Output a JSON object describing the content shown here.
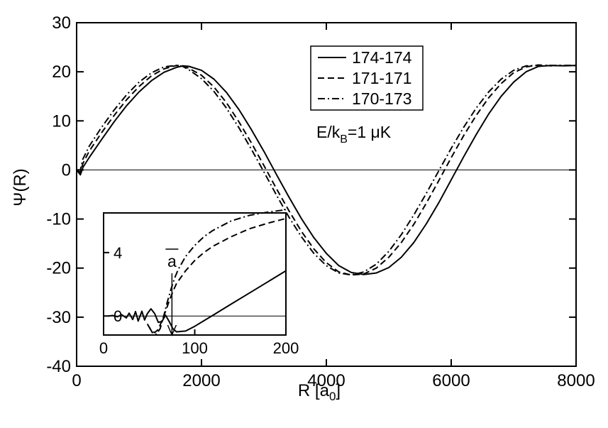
{
  "chart_data": [
    {
      "type": "line",
      "xlabel": "R [a0]",
      "xlabel_parts": {
        "main": "R [a",
        "sub": "0",
        "close": "]"
      },
      "ylabel": "Ψ(R)",
      "xlim": [
        0,
        8000
      ],
      "ylim": [
        -40,
        30
      ],
      "xticks": [
        0,
        2000,
        4000,
        6000,
        8000
      ],
      "yticks": [
        -40,
        -30,
        -20,
        -10,
        0,
        10,
        20,
        30
      ],
      "reference_line_y": 0,
      "legend_position": "top-right",
      "annotation": "E/kB=1 μK",
      "annotation_parts": {
        "main": "E/k",
        "sub": "B",
        "rest": "=1 μK"
      },
      "series": [
        {
          "name": "174-174",
          "style": "solid",
          "x": [
            0,
            60,
            100,
            200,
            400,
            600,
            800,
            1000,
            1200,
            1400,
            1600,
            1700,
            1800,
            2000,
            2200,
            2400,
            2600,
            2800,
            3000,
            3200,
            3400,
            3600,
            3800,
            4000,
            4200,
            4400,
            4600,
            4800,
            5000,
            5200,
            5400,
            5600,
            5800,
            6000,
            6200,
            6400,
            6600,
            6800,
            7000,
            7200,
            7400,
            7600,
            7800,
            8000
          ],
          "y": [
            0,
            -1,
            0.5,
            2.5,
            6.2,
            9.8,
            13.1,
            15.9,
            18.2,
            19.9,
            20.9,
            21.2,
            21.1,
            20.3,
            18.5,
            15.8,
            12.3,
            8.2,
            3.8,
            -0.9,
            -5.5,
            -9.9,
            -13.8,
            -17.0,
            -19.5,
            -20.9,
            -21.3,
            -21.0,
            -19.9,
            -17.8,
            -14.8,
            -11.0,
            -6.7,
            -2.0,
            2.7,
            7.2,
            11.4,
            15.0,
            17.9,
            20.0,
            21.1,
            21.3,
            21.2,
            21.3
          ]
        },
        {
          "name": "171-171",
          "style": "dashed",
          "x": [
            0,
            60,
            100,
            200,
            400,
            600,
            800,
            1000,
            1200,
            1400,
            1600,
            1700,
            1800,
            2000,
            2200,
            2400,
            2600,
            2800,
            3000,
            3200,
            3400,
            3600,
            3800,
            4000,
            4200,
            4400,
            4600,
            4800,
            5000,
            5200,
            5400,
            5600,
            5800,
            6000,
            6200,
            6400,
            6600,
            6800,
            7000,
            7200,
            7400,
            7600,
            7800,
            8000
          ],
          "y": [
            0,
            -0.5,
            1.3,
            3.8,
            7.6,
            11.1,
            14.3,
            17.0,
            19.2,
            20.6,
            21.3,
            21.2,
            20.7,
            19.3,
            16.9,
            13.7,
            9.8,
            5.5,
            0.9,
            -3.8,
            -8.3,
            -12.5,
            -16.1,
            -18.9,
            -20.8,
            -21.4,
            -21.2,
            -20.0,
            -17.8,
            -14.8,
            -11.1,
            -6.8,
            -2.2,
            2.5,
            7.0,
            11.1,
            14.7,
            17.6,
            19.8,
            21.0,
            21.4,
            21.2,
            21.3,
            21.3
          ]
        },
        {
          "name": "170-173",
          "style": "dashdot",
          "x": [
            0,
            60,
            100,
            200,
            400,
            600,
            800,
            1000,
            1200,
            1400,
            1600,
            1700,
            1800,
            2000,
            2200,
            2400,
            2600,
            2800,
            3000,
            3200,
            3400,
            3600,
            3800,
            4000,
            4200,
            4400,
            4600,
            4800,
            5000,
            5200,
            5400,
            5600,
            5800,
            6000,
            6200,
            6400,
            6600,
            6800,
            7000,
            7200,
            7400,
            7600,
            7800,
            8000
          ],
          "y": [
            0,
            0,
            2.2,
            4.8,
            8.7,
            12.2,
            15.3,
            17.9,
            19.8,
            21.0,
            21.3,
            21.1,
            20.4,
            18.6,
            16.0,
            12.6,
            8.6,
            4.2,
            -0.4,
            -5.1,
            -9.6,
            -13.6,
            -17.0,
            -19.5,
            -21.0,
            -21.4,
            -20.8,
            -19.2,
            -16.6,
            -13.2,
            -9.2,
            -4.8,
            -0.2,
            4.4,
            8.7,
            12.6,
            15.9,
            18.5,
            20.3,
            21.2,
            21.3,
            21.3,
            21.3,
            21.3
          ]
        }
      ]
    },
    {
      "type": "line",
      "role": "inset",
      "xlim": [
        0,
        200
      ],
      "ylim": [
        -1.2,
        6.5
      ],
      "xticks": [
        0,
        100,
        200
      ],
      "yticks": [
        0,
        4
      ],
      "reference_line_y": 0,
      "marker_label": "a",
      "marker_x": 75,
      "series": [
        {
          "name": "174-174",
          "style": "solid",
          "x": [
            5,
            10,
            15,
            20,
            25,
            28,
            32,
            35,
            38,
            42,
            45,
            48,
            52,
            56,
            60,
            64,
            68,
            72,
            76,
            80,
            90,
            100,
            110,
            120,
            140,
            160,
            180,
            200
          ],
          "y": [
            0,
            0.03,
            -0.05,
            0.08,
            -0.12,
            0.18,
            -0.22,
            0.28,
            -0.32,
            0.3,
            -0.25,
            0.15,
            0.45,
            0.15,
            -0.4,
            -0.35,
            0.05,
            -0.35,
            -0.8,
            -1.0,
            -0.95,
            -0.65,
            -0.3,
            0.05,
            0.75,
            1.45,
            2.15,
            2.85
          ]
        },
        {
          "name": "171-171",
          "style": "dashed",
          "x": [
            48,
            52,
            56,
            60,
            64,
            68,
            72,
            76,
            80,
            90,
            100,
            110,
            120,
            140,
            160,
            180,
            200
          ],
          "y": [
            -0.5,
            -0.9,
            -1.05,
            -0.85,
            -0.3,
            0.3,
            0.95,
            1.55,
            2.05,
            2.85,
            3.5,
            4.0,
            4.4,
            5.0,
            5.5,
            5.85,
            6.15
          ]
        },
        {
          "name": "170-173",
          "style": "dashdot",
          "x": [
            50,
            54,
            58,
            62,
            66,
            70,
            74,
            78,
            82,
            90,
            100,
            110,
            120,
            140,
            160,
            180,
            200
          ],
          "y": [
            -0.7,
            -1.1,
            -1.15,
            -0.8,
            0.0,
            0.9,
            1.7,
            2.4,
            2.95,
            3.75,
            4.45,
            5.0,
            5.4,
            6.0,
            6.35,
            6.55,
            6.7
          ]
        }
      ]
    }
  ]
}
